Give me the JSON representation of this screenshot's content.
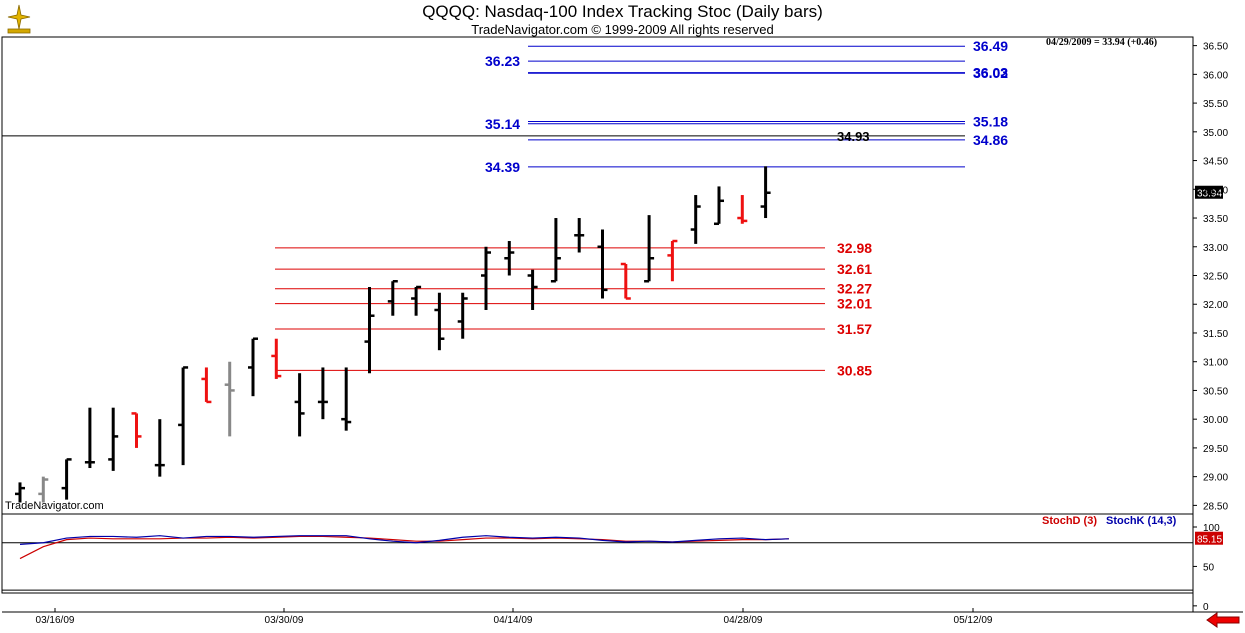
{
  "header": {
    "title": "QQQQ:  Nasdaq-100 Index Tracking Stoc  (Daily bars)",
    "subtitle": "TradeNavigator.com © 1999-2009 All rights reserved",
    "info": "04/29/2009 = 33.94 (+0.46)",
    "watermark": "TradeNavigator.com"
  },
  "colors": {
    "up": "#000000",
    "down_red": "#ee1111",
    "green": "#22dd22",
    "gray": "#888888",
    "blue_level": "#0000cc",
    "red_level": "#dd0000",
    "stochD": "#cc0000",
    "stochK": "#0000aa"
  },
  "chart_data": {
    "type": "ohlc",
    "title": "QQQQ:  Nasdaq-100 Index Tracking Stoc  (Daily bars)",
    "ylim": [
      28.35,
      36.65
    ],
    "y_ticks": [
      "36.50",
      "36.00",
      "35.50",
      "35.00",
      "34.50",
      "34.00",
      "33.50",
      "33.00",
      "32.50",
      "32.00",
      "31.50",
      "31.00",
      "30.50",
      "30.00",
      "29.50",
      "29.00",
      "28.50"
    ],
    "x_tick_labels": [
      "03/16/09",
      "03/30/09",
      "04/14/09",
      "04/28/09",
      "05/12/09"
    ],
    "bars": [
      {
        "d": "03/11",
        "o": 28.7,
        "h": 28.9,
        "l": 28.55,
        "c": 28.8,
        "col": "black"
      },
      {
        "d": "03/12",
        "o": 28.7,
        "h": 29.0,
        "l": 28.55,
        "c": 28.95,
        "col": "gray"
      },
      {
        "d": "03/13",
        "o": 28.8,
        "h": 29.3,
        "l": 28.6,
        "c": 29.3,
        "col": "black"
      },
      {
        "d": "03/16",
        "o": 29.25,
        "h": 30.2,
        "l": 29.15,
        "c": 29.25,
        "col": "black"
      },
      {
        "d": "03/17",
        "o": 29.3,
        "h": 30.2,
        "l": 29.1,
        "c": 29.7,
        "col": "black"
      },
      {
        "d": "03/18",
        "o": 30.1,
        "h": 30.1,
        "l": 29.5,
        "c": 29.7,
        "col": "red"
      },
      {
        "d": "03/19",
        "o": 29.2,
        "h": 30.0,
        "l": 29.0,
        "c": 29.2,
        "col": "black"
      },
      {
        "d": "03/20",
        "o": 29.9,
        "h": 30.9,
        "l": 29.2,
        "c": 30.9,
        "col": "black"
      },
      {
        "d": "03/23",
        "o": 30.7,
        "h": 30.9,
        "l": 30.3,
        "c": 30.3,
        "col": "red"
      },
      {
        "d": "03/24",
        "o": 30.6,
        "h": 31.0,
        "l": 29.7,
        "c": 30.5,
        "col": "gray"
      },
      {
        "d": "03/25",
        "o": 30.9,
        "h": 31.4,
        "l": 30.4,
        "c": 31.4,
        "col": "black"
      },
      {
        "d": "03/26",
        "o": 31.1,
        "h": 31.4,
        "l": 30.7,
        "c": 30.75,
        "col": "red"
      },
      {
        "d": "03/27",
        "o": 30.3,
        "h": 30.8,
        "l": 29.7,
        "c": 30.1,
        "col": "black"
      },
      {
        "d": "03/30",
        "o": 30.3,
        "h": 30.9,
        "l": 30.0,
        "c": 30.3,
        "col": "black"
      },
      {
        "d": "03/31",
        "o": 30.0,
        "h": 30.9,
        "l": 29.8,
        "c": 29.95,
        "col": "black"
      },
      {
        "d": "04/01",
        "o": 31.35,
        "h": 32.3,
        "l": 30.8,
        "c": 31.8,
        "col": "black"
      },
      {
        "d": "04/02",
        "o": 32.05,
        "h": 32.4,
        "l": 31.8,
        "c": 32.4,
        "col": "black"
      },
      {
        "d": "04/03",
        "o": 32.1,
        "h": 32.3,
        "l": 31.8,
        "c": 32.3,
        "col": "black"
      },
      {
        "d": "04/06",
        "o": 31.9,
        "h": 32.2,
        "l": 31.2,
        "c": 31.4,
        "col": "black"
      },
      {
        "d": "04/07",
        "o": 31.7,
        "h": 32.2,
        "l": 31.4,
        "c": 32.1,
        "col": "black"
      },
      {
        "d": "04/08",
        "o": 32.5,
        "h": 33.0,
        "l": 31.9,
        "c": 32.9,
        "col": "black"
      },
      {
        "d": "04/09",
        "o": 32.8,
        "h": 33.1,
        "l": 32.5,
        "c": 32.9,
        "col": "black"
      },
      {
        "d": "04/13",
        "o": 32.5,
        "h": 32.6,
        "l": 31.9,
        "c": 32.3,
        "col": "black"
      },
      {
        "d": "04/14",
        "o": 32.4,
        "h": 33.5,
        "l": 32.4,
        "c": 32.8,
        "col": "black"
      },
      {
        "d": "04/15",
        "o": 33.2,
        "h": 33.5,
        "l": 32.9,
        "c": 33.2,
        "col": "black"
      },
      {
        "d": "04/16",
        "o": 33.0,
        "h": 33.3,
        "l": 32.1,
        "c": 32.25,
        "col": "black"
      },
      {
        "d": "04/17",
        "o": 32.7,
        "h": 32.7,
        "l": 32.1,
        "c": 32.1,
        "col": "red"
      },
      {
        "d": "04/20",
        "o": 32.4,
        "h": 33.55,
        "l": 32.4,
        "c": 32.8,
        "col": "black"
      },
      {
        "d": "04/21",
        "o": 32.85,
        "h": 33.1,
        "l": 32.4,
        "c": 33.1,
        "col": "red"
      },
      {
        "d": "04/22",
        "o": 33.3,
        "h": 33.9,
        "l": 33.05,
        "c": 33.7,
        "col": "black"
      },
      {
        "d": "04/23",
        "o": 33.4,
        "h": 34.05,
        "l": 33.4,
        "c": 33.8,
        "col": "black"
      },
      {
        "d": "04/24",
        "o": 33.5,
        "h": 33.9,
        "l": 33.4,
        "c": 33.45,
        "col": "red"
      },
      {
        "d": "04/27",
        "o": 33.7,
        "h": 34.4,
        "l": 33.5,
        "c": 33.94,
        "col": "black"
      }
    ],
    "levels_blue": [
      {
        "label": "36.49",
        "v": 36.49,
        "side": "right"
      },
      {
        "label": "36.23",
        "v": 36.23,
        "side": "left"
      },
      {
        "label": "36.02",
        "v": 36.02,
        "side": "right"
      },
      {
        "label": "36.03",
        "v": 36.03,
        "side": "right"
      },
      {
        "label": "35.18",
        "v": 35.18,
        "side": "right"
      },
      {
        "label": "35.14",
        "v": 35.14,
        "side": "left"
      },
      {
        "label": "34.86",
        "v": 34.86,
        "side": "right"
      },
      {
        "label": "34.39",
        "v": 34.39,
        "side": "left"
      }
    ],
    "level_black": {
      "label": "34.93",
      "v": 34.93
    },
    "levels_red": [
      {
        "label": "32.98",
        "v": 32.98
      },
      {
        "label": "32.61",
        "v": 32.61
      },
      {
        "label": "32.27",
        "v": 32.27
      },
      {
        "label": "32.01",
        "v": 32.01
      },
      {
        "label": "31.57",
        "v": 31.57
      },
      {
        "label": "30.85",
        "v": 30.85
      }
    ],
    "last_price_label": "33.94",
    "stoch": {
      "name_d": "StochD (3)",
      "name_k": "StochK (14,3)",
      "ylim": [
        0,
        100
      ],
      "y_ticks": [
        "100",
        "50",
        "0"
      ],
      "last_label": "85.15",
      "k": [
        78,
        80,
        86,
        88,
        88,
        87,
        89,
        86,
        88,
        88,
        87,
        88,
        89,
        89,
        89,
        85,
        82,
        80,
        83,
        87,
        89,
        87,
        86,
        87,
        86,
        83,
        81,
        82,
        81,
        83,
        85,
        86,
        84,
        85
      ],
      "d": [
        60,
        75,
        84,
        86,
        85,
        85,
        85,
        86,
        86,
        87,
        86,
        87,
        88,
        88,
        87,
        86,
        84,
        82,
        82,
        84,
        86,
        86,
        85,
        86,
        85,
        84,
        82,
        82,
        81,
        82,
        83,
        84,
        84,
        85
      ]
    }
  }
}
